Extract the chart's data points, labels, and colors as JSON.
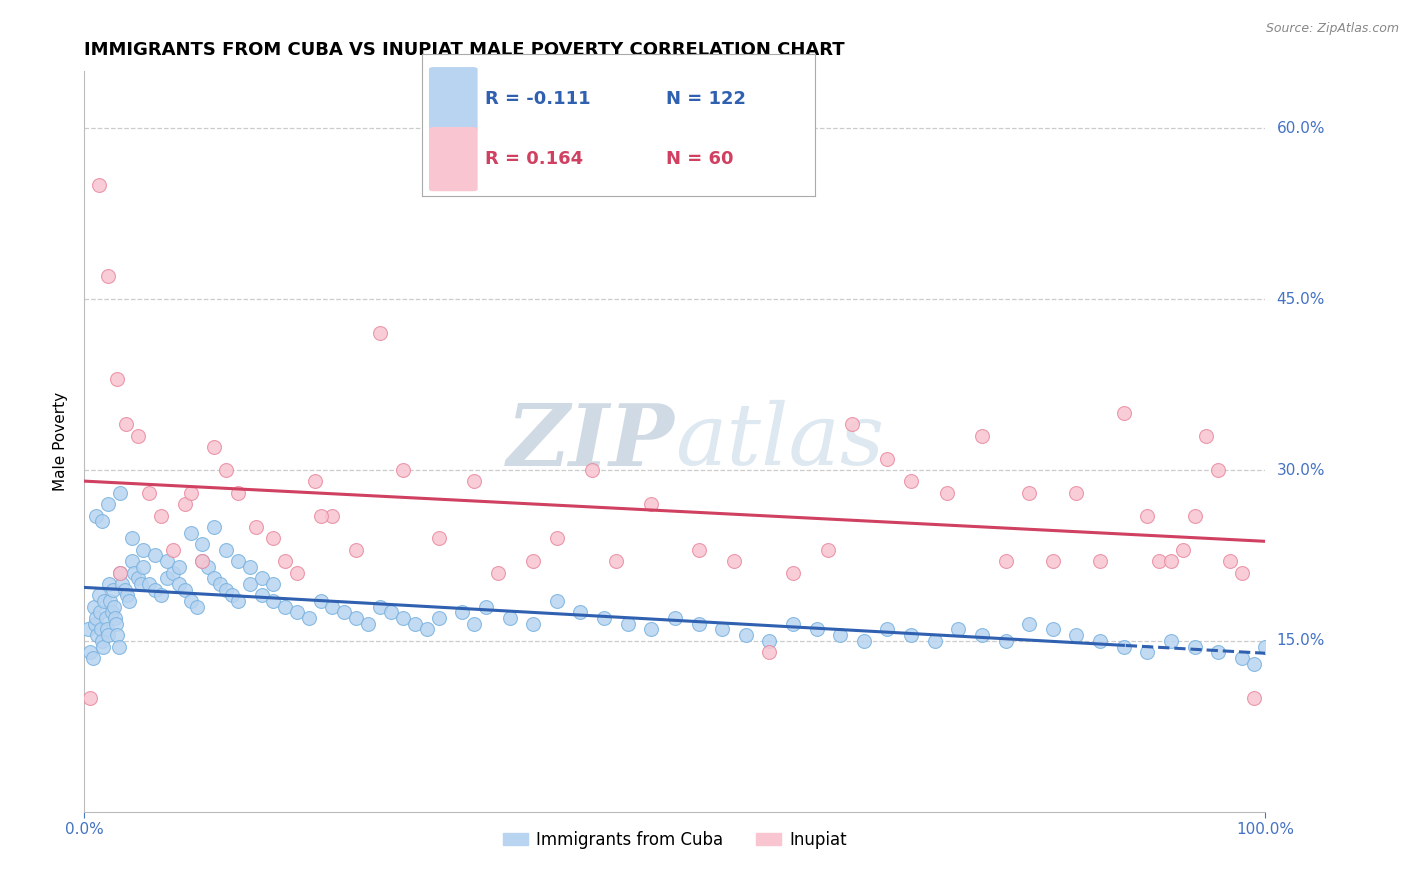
{
  "title": "IMMIGRANTS FROM CUBA VS INUPIAT MALE POVERTY CORRELATION CHART",
  "source_text": "Source: ZipAtlas.com",
  "xlabel": "",
  "ylabel": "Male Poverty",
  "xlim": [
    0.0,
    100.0
  ],
  "ylim": [
    0.0,
    65.0
  ],
  "yticks": [
    15.0,
    30.0,
    45.0,
    60.0
  ],
  "xticks": [
    0.0,
    100.0
  ],
  "xtick_labels": [
    "0.0%",
    "100.0%"
  ],
  "ytick_labels": [
    "15.0%",
    "30.0%",
    "45.0%",
    "60.0%"
  ],
  "grid_color": "#cccccc",
  "background_color": "#ffffff",
  "watermark_zip": "ZIP",
  "watermark_atlas": "atlas",
  "watermark_color": "#d4dce8",
  "series": [
    {
      "name": "Immigrants from Cuba",
      "R": -0.111,
      "N": 122,
      "dot_fill": "#b8d4f0",
      "dot_edge": "#7ab3e0",
      "trend_color": "#3060b0",
      "trend_dash": "solid_then_dashed",
      "x": [
        0.3,
        0.5,
        0.7,
        0.8,
        0.9,
        1.0,
        1.1,
        1.2,
        1.3,
        1.4,
        1.5,
        1.6,
        1.7,
        1.8,
        1.9,
        2.0,
        2.1,
        2.2,
        2.3,
        2.4,
        2.5,
        2.6,
        2.7,
        2.8,
        2.9,
        3.0,
        3.2,
        3.4,
        3.6,
        3.8,
        4.0,
        4.2,
        4.5,
        4.8,
        5.0,
        5.5,
        6.0,
        6.5,
        7.0,
        7.5,
        8.0,
        8.5,
        9.0,
        9.5,
        10.0,
        10.5,
        11.0,
        11.5,
        12.0,
        12.5,
        13.0,
        14.0,
        15.0,
        16.0,
        17.0,
        18.0,
        19.0,
        20.0,
        21.0,
        22.0,
        23.0,
        24.0,
        25.0,
        26.0,
        27.0,
        28.0,
        29.0,
        30.0,
        32.0,
        33.0,
        34.0,
        36.0,
        38.0,
        40.0,
        42.0,
        44.0,
        46.0,
        48.0,
        50.0,
        52.0,
        54.0,
        56.0,
        58.0,
        60.0,
        62.0,
        64.0,
        66.0,
        68.0,
        70.0,
        72.0,
        74.0,
        76.0,
        78.0,
        80.0,
        82.0,
        84.0,
        86.0,
        88.0,
        90.0,
        92.0,
        94.0,
        96.0,
        98.0,
        99.0,
        100.0,
        1.0,
        1.5,
        2.0,
        3.0,
        4.0,
        5.0,
        6.0,
        7.0,
        8.0,
        9.0,
        10.0,
        11.0,
        12.0,
        13.0,
        14.0,
        15.0,
        16.0
      ],
      "y": [
        16.0,
        14.0,
        13.5,
        18.0,
        16.5,
        17.0,
        15.5,
        19.0,
        17.5,
        16.0,
        15.0,
        14.5,
        18.5,
        17.0,
        16.0,
        15.5,
        20.0,
        18.5,
        17.5,
        19.5,
        18.0,
        17.0,
        16.5,
        15.5,
        14.5,
        21.0,
        20.0,
        19.5,
        19.0,
        18.5,
        22.0,
        21.0,
        20.5,
        20.0,
        21.5,
        20.0,
        19.5,
        19.0,
        20.5,
        21.0,
        20.0,
        19.5,
        18.5,
        18.0,
        22.0,
        21.5,
        20.5,
        20.0,
        19.5,
        19.0,
        18.5,
        20.0,
        19.0,
        18.5,
        18.0,
        17.5,
        17.0,
        18.5,
        18.0,
        17.5,
        17.0,
        16.5,
        18.0,
        17.5,
        17.0,
        16.5,
        16.0,
        17.0,
        17.5,
        16.5,
        18.0,
        17.0,
        16.5,
        18.5,
        17.5,
        17.0,
        16.5,
        16.0,
        17.0,
        16.5,
        16.0,
        15.5,
        15.0,
        16.5,
        16.0,
        15.5,
        15.0,
        16.0,
        15.5,
        15.0,
        16.0,
        15.5,
        15.0,
        16.5,
        16.0,
        15.5,
        15.0,
        14.5,
        14.0,
        15.0,
        14.5,
        14.0,
        13.5,
        13.0,
        14.5,
        26.0,
        25.5,
        27.0,
        28.0,
        24.0,
        23.0,
        22.5,
        22.0,
        21.5,
        24.5,
        23.5,
        25.0,
        23.0,
        22.0,
        21.5,
        20.5,
        20.0
      ]
    },
    {
      "name": "Inupiat",
      "R": 0.164,
      "N": 60,
      "dot_fill": "#f9c5d1",
      "dot_edge": "#e88aa0",
      "trend_color": "#d04060",
      "trend_dash": "solid",
      "x": [
        0.5,
        1.2,
        2.0,
        2.8,
        3.5,
        4.5,
        5.5,
        6.5,
        7.5,
        8.5,
        9.0,
        10.0,
        11.0,
        12.0,
        13.0,
        14.5,
        16.0,
        17.0,
        18.0,
        19.5,
        21.0,
        23.0,
        25.0,
        27.0,
        30.0,
        33.0,
        35.0,
        38.0,
        40.0,
        43.0,
        45.0,
        48.0,
        52.0,
        55.0,
        58.0,
        60.0,
        63.0,
        65.0,
        68.0,
        70.0,
        73.0,
        76.0,
        78.0,
        80.0,
        82.0,
        84.0,
        86.0,
        88.0,
        90.0,
        91.0,
        92.0,
        93.0,
        94.0,
        95.0,
        96.0,
        97.0,
        98.0,
        99.0,
        3.0,
        20.0
      ],
      "y": [
        10.0,
        55.0,
        47.0,
        38.0,
        34.0,
        33.0,
        28.0,
        26.0,
        23.0,
        27.0,
        28.0,
        22.0,
        32.0,
        30.0,
        28.0,
        25.0,
        24.0,
        22.0,
        21.0,
        29.0,
        26.0,
        23.0,
        42.0,
        30.0,
        24.0,
        29.0,
        21.0,
        22.0,
        24.0,
        30.0,
        22.0,
        27.0,
        23.0,
        22.0,
        14.0,
        21.0,
        23.0,
        34.0,
        31.0,
        29.0,
        28.0,
        33.0,
        22.0,
        28.0,
        22.0,
        28.0,
        22.0,
        35.0,
        26.0,
        22.0,
        22.0,
        23.0,
        26.0,
        33.0,
        30.0,
        22.0,
        21.0,
        10.0,
        21.0,
        26.0
      ]
    }
  ],
  "legend": {
    "R_blue": "-0.111",
    "N_blue": "122",
    "R_pink": "0.164",
    "N_pink": "60",
    "box_color_blue": "#b8d4f0",
    "box_color_pink": "#f9c5d1",
    "text_color_blue": "#3060b0",
    "text_color_pink": "#d04060"
  },
  "title_fontsize": 13,
  "axis_label_fontsize": 11,
  "tick_fontsize": 11,
  "tick_color": "#4472c4",
  "legend_fontsize": 12,
  "bottom_legend": [
    "Immigrants from Cuba",
    "Inupiat"
  ]
}
